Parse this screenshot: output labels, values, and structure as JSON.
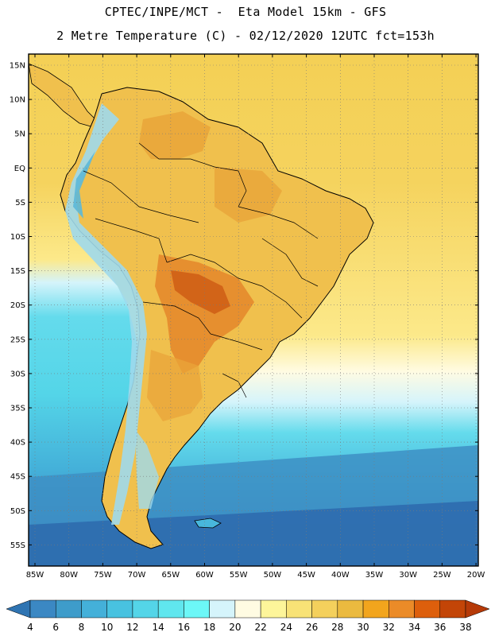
{
  "header": {
    "line1": "CPTEC/INPE/MCT -  Eta Model 15km - GFS",
    "line2": "2 Metre Temperature (C) - 02/12/2020 12UTC fct=153h"
  },
  "axes": {
    "lat_labels": [
      "15N",
      "10N",
      "5N",
      "EQ",
      "5S",
      "10S",
      "15S",
      "20S",
      "25S",
      "30S",
      "35S",
      "40S",
      "45S",
      "50S",
      "55S"
    ],
    "lon_labels": [
      "85W",
      "80W",
      "75W",
      "70W",
      "65W",
      "60W",
      "55W",
      "50W",
      "45W",
      "40W",
      "35W",
      "30W",
      "25W",
      "20W"
    ]
  },
  "colorbar": {
    "labels": [
      "4",
      "6",
      "8",
      "10",
      "12",
      "14",
      "16",
      "18",
      "20",
      "22",
      "24",
      "26",
      "28",
      "30",
      "32",
      "34",
      "36",
      "38"
    ],
    "low_color": "#2f74b2",
    "high_color": "#b63a08",
    "colors": [
      "#2f74b2",
      "#3b88c3",
      "#3e9cca",
      "#44b0d9",
      "#48c2e0",
      "#54d5e8",
      "#60e6ee",
      "#6cf7f7",
      "#d5f4fb",
      "#fffbe2",
      "#fdf59a",
      "#f8e276",
      "#f4d05c",
      "#ebba3f",
      "#f2a51d",
      "#eb8b28",
      "#dd5f0c",
      "#c34507",
      "#b63a08"
    ]
  },
  "map_colors": {
    "ocean_deep": "#2e6bae",
    "ocean_mid": "#3d8fc4",
    "ocean_cool": "#48b7dc",
    "ocean_mild": "#64dbec",
    "ocean_pale": "#d5f4fb",
    "ocean_cream": "#fffbe2",
    "ocean_yellow": "#fce98a",
    "ocean_warm": "#f5d35e",
    "land_warm": "#f0c04d",
    "land_hot": "#e9a43a",
    "land_hotter": "#e48a2c",
    "land_hottest": "#cf5f16",
    "andes_cold": "#9fd9ec",
    "andes_cool": "#5cb8d8",
    "border": "#000000"
  }
}
